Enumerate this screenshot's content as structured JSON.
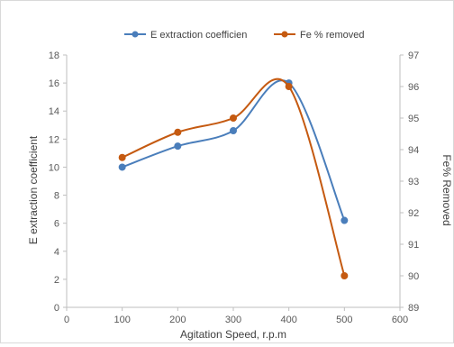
{
  "chart_data": {
    "type": "line",
    "title": "",
    "xlabel": "Agitation Speed, r.p.m",
    "ylabel": "E extraction coefficient",
    "y2label": "Fe% Removed",
    "xlim": [
      0,
      600
    ],
    "ylim": [
      0,
      18
    ],
    "y2lim": [
      89,
      97
    ],
    "xticks": [
      "0",
      "100",
      "200",
      "300",
      "400",
      "500",
      "600"
    ],
    "yticks": [
      "0",
      "2",
      "4",
      "6",
      "8",
      "10",
      "12",
      "14",
      "16",
      "18"
    ],
    "y2ticks": [
      "89",
      "90",
      "91",
      "92",
      "93",
      "94",
      "95",
      "96",
      "97"
    ],
    "grid": false,
    "smooth": true,
    "legend_position": "top",
    "x": [
      100,
      200,
      300,
      400,
      500
    ],
    "series": [
      {
        "name": "E extraction coefficien",
        "axis": "left",
        "color": "#4a7ebb",
        "values": [
          10.0,
          11.5,
          12.6,
          16.0,
          6.2
        ]
      },
      {
        "name": "Fe % removed",
        "axis": "right",
        "color": "#c55a11",
        "values": [
          93.75,
          94.55,
          95.0,
          96.0,
          90.0
        ]
      }
    ]
  }
}
